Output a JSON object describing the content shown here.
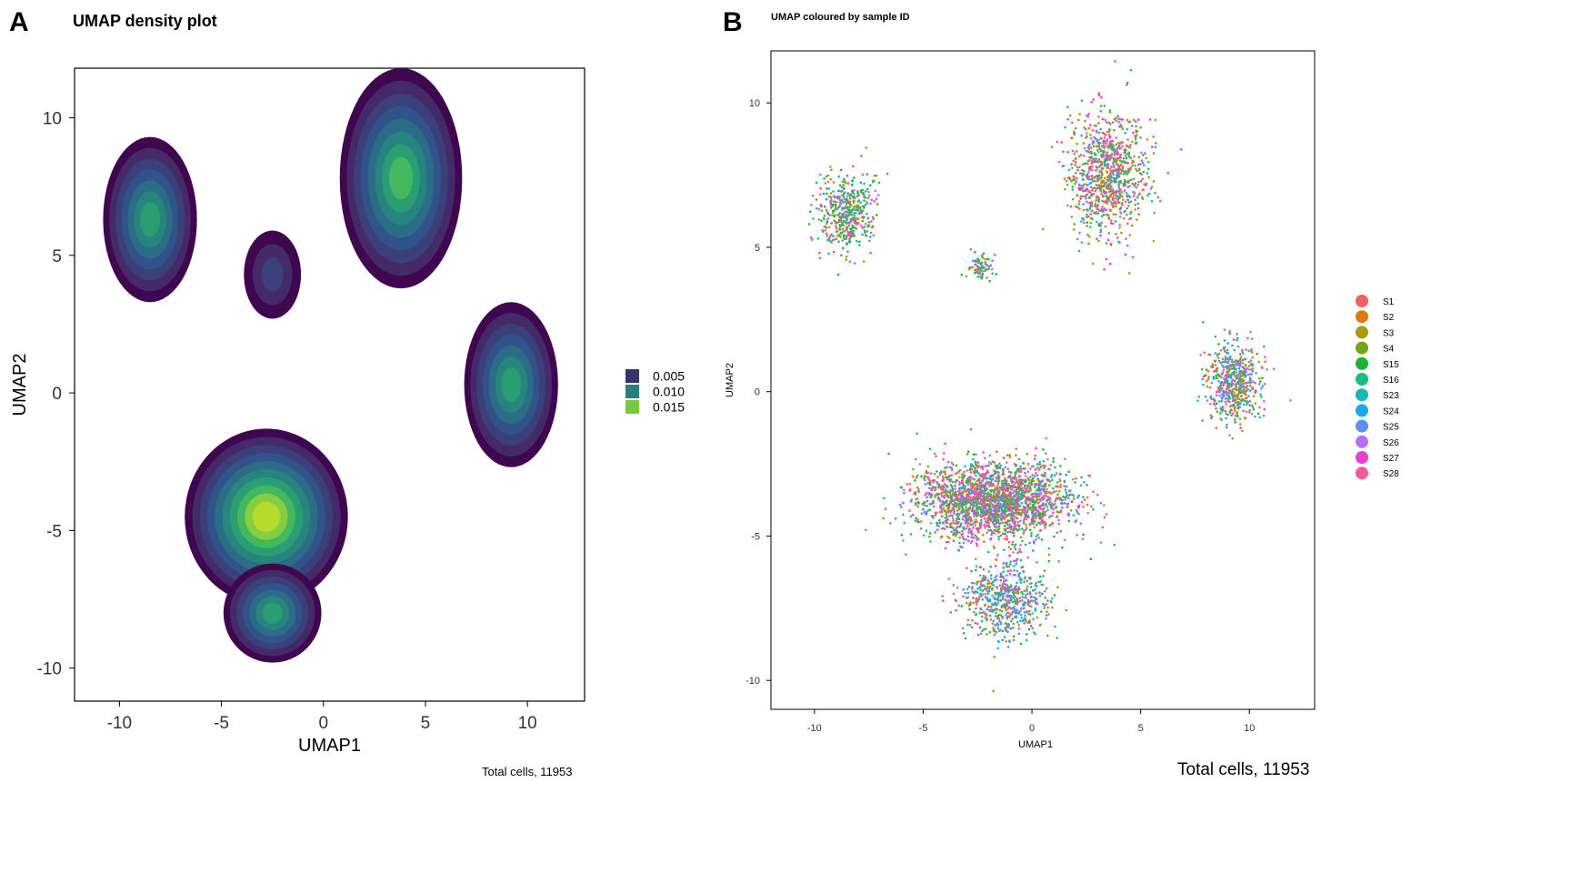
{
  "panel_a": {
    "letter": "A",
    "title": "UMAP density plot",
    "footnote": "Total cells, 11953"
  },
  "panel_b": {
    "letter": "B",
    "title": "UMAP coloured by sample ID",
    "footnote": "Total cells, 11953"
  },
  "chart_data": [
    {
      "type": "density_contour",
      "title": "UMAP density plot",
      "xlabel": "UMAP1",
      "ylabel": "UMAP2",
      "xlim": [
        -12.2,
        12.8
      ],
      "ylim": [
        -11.2,
        11.8
      ],
      "xticks": [
        -10,
        -5,
        0,
        5,
        10
      ],
      "yticks": [
        -10,
        -5,
        0,
        5,
        10
      ],
      "grid": false,
      "legend_position": "right",
      "legend": [
        {
          "label": "0.005",
          "color": "#35356e"
        },
        {
          "label": "0.010",
          "color": "#2b7f7b"
        },
        {
          "label": "0.015",
          "color": "#7ac943"
        }
      ],
      "level_colors": [
        "#400751",
        "#452a6a",
        "#3b3f7a",
        "#305489",
        "#2b6c86",
        "#26867f",
        "#2a9e72",
        "#43b85e",
        "#86cd42",
        "#b4dc2e"
      ],
      "clusters": [
        {
          "cx": -8.5,
          "cy": 6.3,
          "rx": 2.3,
          "ry": 3.0,
          "peak": 7
        },
        {
          "cx": -2.5,
          "cy": 4.3,
          "rx": 1.4,
          "ry": 1.6,
          "peak": 3
        },
        {
          "cx": 3.8,
          "cy": 7.8,
          "rx": 3.0,
          "ry": 4.0,
          "peak": 8
        },
        {
          "cx": 9.2,
          "cy": 0.3,
          "rx": 2.3,
          "ry": 3.0,
          "peak": 7
        },
        {
          "cx": -2.8,
          "cy": -4.5,
          "rx": 4.0,
          "ry": 3.2,
          "peak": 10
        },
        {
          "cx": -2.5,
          "cy": -8.0,
          "rx": 2.4,
          "ry": 1.8,
          "peak": 7
        }
      ],
      "total_cells": 11953
    },
    {
      "type": "scatter",
      "title": "UMAP coloured by sample ID",
      "xlabel": "UMAP1",
      "ylabel": "UMAP2",
      "xlim": [
        -12.0,
        13.0
      ],
      "ylim": [
        -11.0,
        11.8
      ],
      "xticks": [
        -10,
        -5,
        0,
        5,
        10
      ],
      "yticks": [
        -10,
        -5,
        0,
        5,
        10
      ],
      "grid": false,
      "legend_position": "right",
      "series": [
        {
          "name": "S1",
          "color": "#f0635f"
        },
        {
          "name": "S2",
          "color": "#d97c12"
        },
        {
          "name": "S3",
          "color": "#a79a10"
        },
        {
          "name": "S4",
          "color": "#72a61a"
        },
        {
          "name": "S15",
          "color": "#1bb535"
        },
        {
          "name": "S16",
          "color": "#1abd7d"
        },
        {
          "name": "S23",
          "color": "#17b7b6"
        },
        {
          "name": "S24",
          "color": "#19a9e8"
        },
        {
          "name": "S25",
          "color": "#5f8df0"
        },
        {
          "name": "S26",
          "color": "#b56ff0"
        },
        {
          "name": "S27",
          "color": "#ea3fd0"
        },
        {
          "name": "S28",
          "color": "#f5589b"
        }
      ],
      "clusters": [
        {
          "cx": -8.5,
          "cy": 6.2,
          "rx": 1.2,
          "ry": 1.2,
          "n": 450,
          "weights": [
            1,
            1,
            1,
            3,
            3,
            2,
            2,
            1,
            2,
            1,
            2,
            1
          ]
        },
        {
          "cx": -2.4,
          "cy": 4.3,
          "rx": 0.5,
          "ry": 0.4,
          "n": 80,
          "weights": [
            1,
            1,
            1,
            2,
            3,
            3,
            1,
            1,
            1,
            1,
            1,
            1
          ]
        },
        {
          "cx": 3.5,
          "cy": 7.5,
          "rx": 1.6,
          "ry": 2.0,
          "n": 900,
          "weights": [
            1,
            2,
            3,
            3,
            1,
            1,
            1,
            2,
            1,
            1,
            4,
            2
          ]
        },
        {
          "cx": 9.3,
          "cy": 0.3,
          "rx": 1.1,
          "ry": 1.2,
          "n": 550,
          "weights": [
            1,
            3,
            2,
            2,
            1,
            1,
            2,
            2,
            2,
            3,
            1,
            1
          ]
        },
        {
          "cx": -1.8,
          "cy": -3.8,
          "rx": 3.2,
          "ry": 1.2,
          "n": 2200,
          "weights": [
            2,
            2,
            2,
            2,
            3,
            2,
            1,
            2,
            3,
            3,
            4,
            3
          ]
        },
        {
          "cx": -1.2,
          "cy": -7.2,
          "rx": 1.8,
          "ry": 1.2,
          "n": 600,
          "weights": [
            1,
            2,
            1,
            1,
            1,
            1,
            1,
            5,
            3,
            1,
            1,
            1
          ]
        }
      ],
      "total_cells": 11953
    }
  ]
}
